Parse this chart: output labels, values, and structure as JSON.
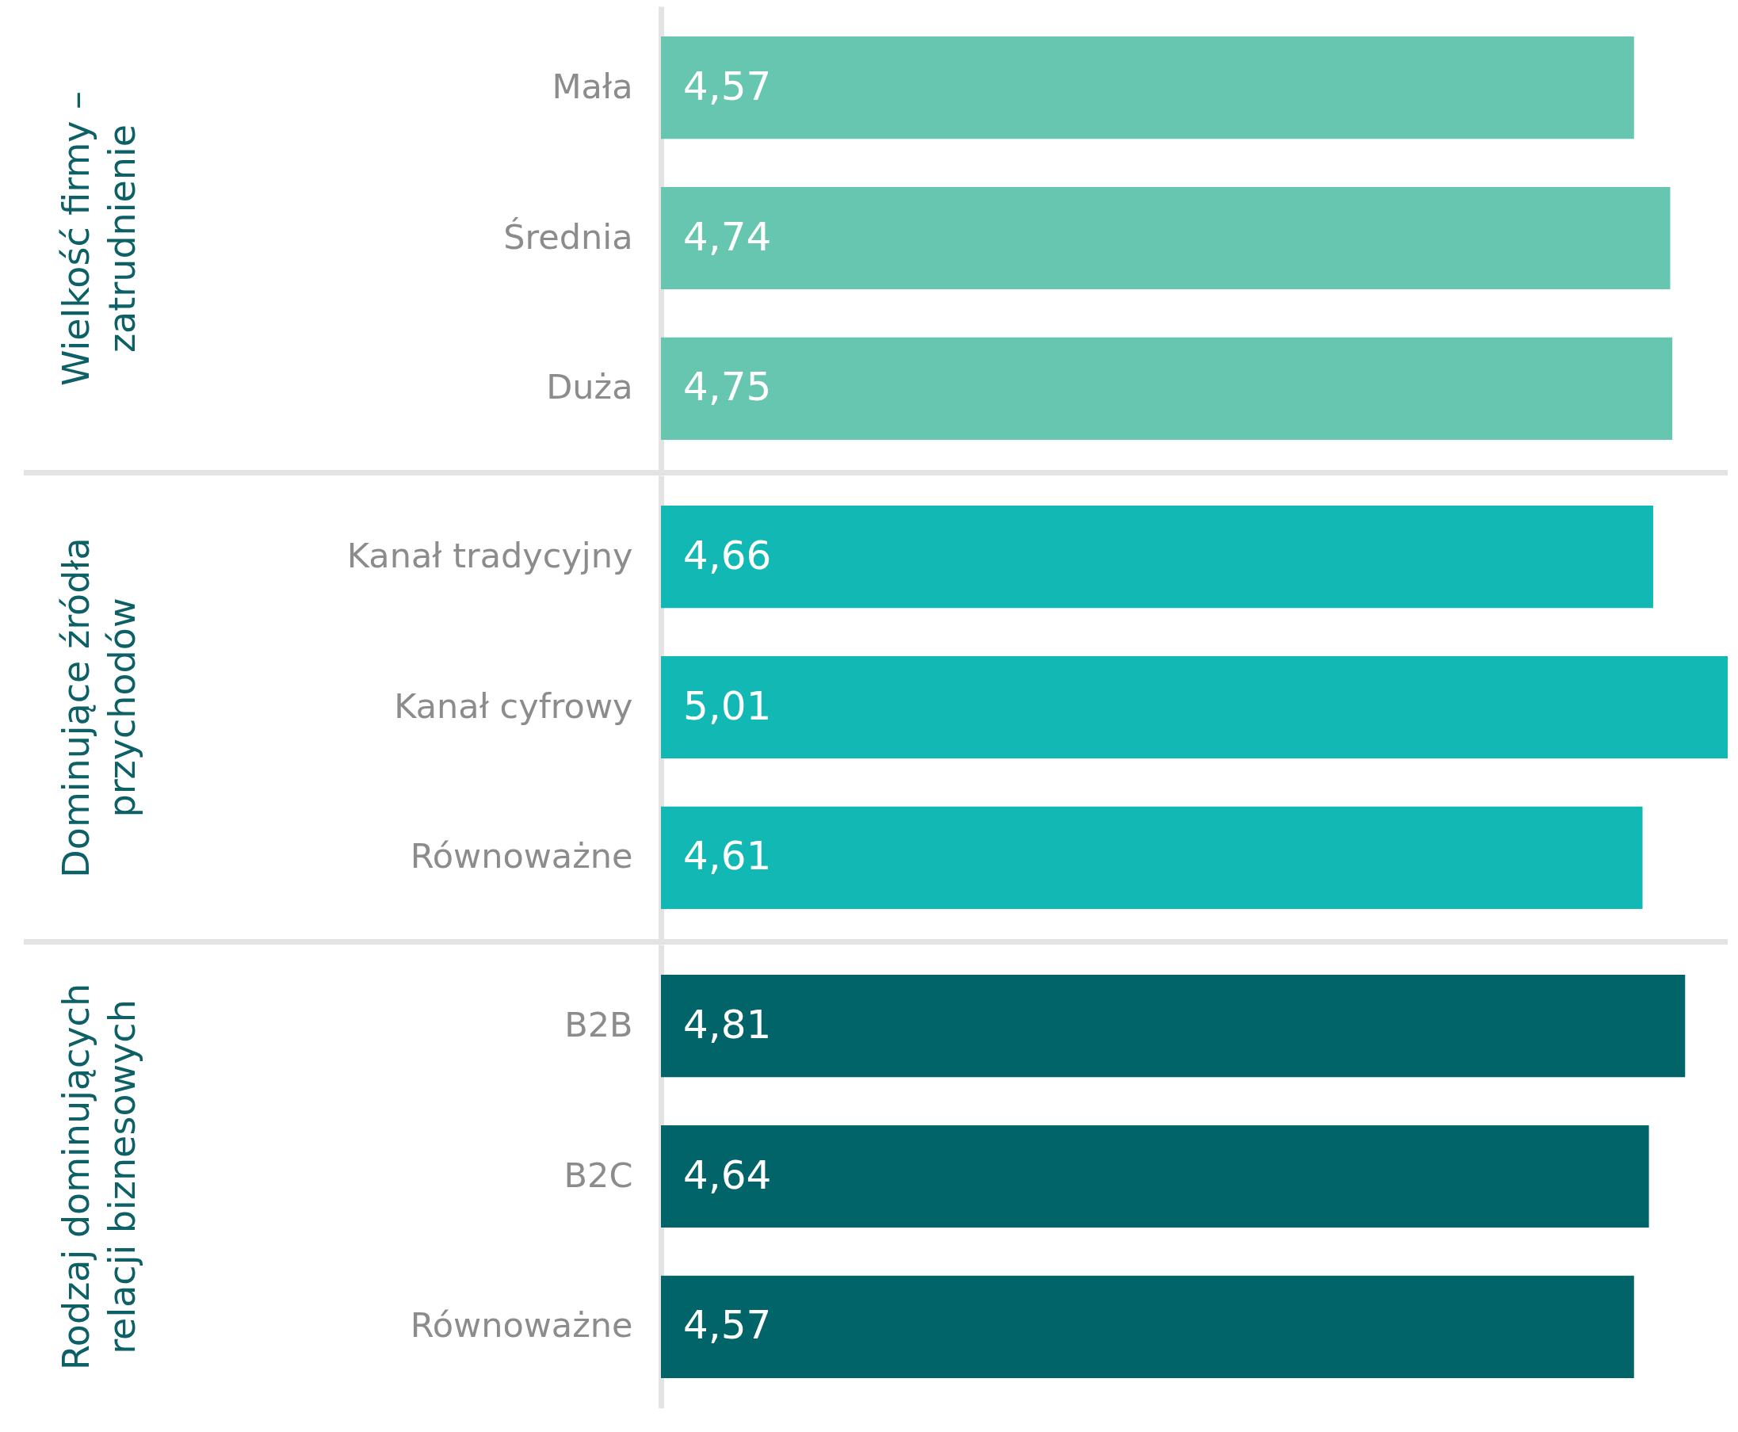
{
  "chart_data": [
    {
      "type": "bar",
      "orientation": "horizontal",
      "ylabel": "Wielkość firmy –\nzatrudnienie",
      "categories": [
        "Mała",
        "Średnia",
        "Duża"
      ],
      "values": [
        4.57,
        4.74,
        4.75
      ],
      "value_labels": [
        "4,57",
        "4,74",
        "4,75"
      ],
      "color": "#66c6b0",
      "tick_labels": "y",
      "grid": false
    },
    {
      "type": "bar",
      "orientation": "horizontal",
      "ylabel": "Dominujące źródła\nprzychodów",
      "categories": [
        "Kanał tradycyjny",
        "Kanał cyfrowy",
        "Równoważne"
      ],
      "values": [
        4.66,
        5.01,
        4.61
      ],
      "value_labels": [
        "4,66",
        "5,01",
        "4,61"
      ],
      "color": "#12b8b3",
      "tick_labels": "y",
      "grid": false
    },
    {
      "type": "bar",
      "orientation": "horizontal",
      "ylabel": "Rodzaj dominujących\nrelacji biznesowych",
      "categories": [
        "B2B",
        "B2C",
        "Równoważne"
      ],
      "values": [
        4.81,
        4.64,
        4.57
      ],
      "value_labels": [
        "4,81",
        "4,64",
        "4,57"
      ],
      "color": "#006468",
      "tick_labels": "y",
      "grid": false
    }
  ]
}
